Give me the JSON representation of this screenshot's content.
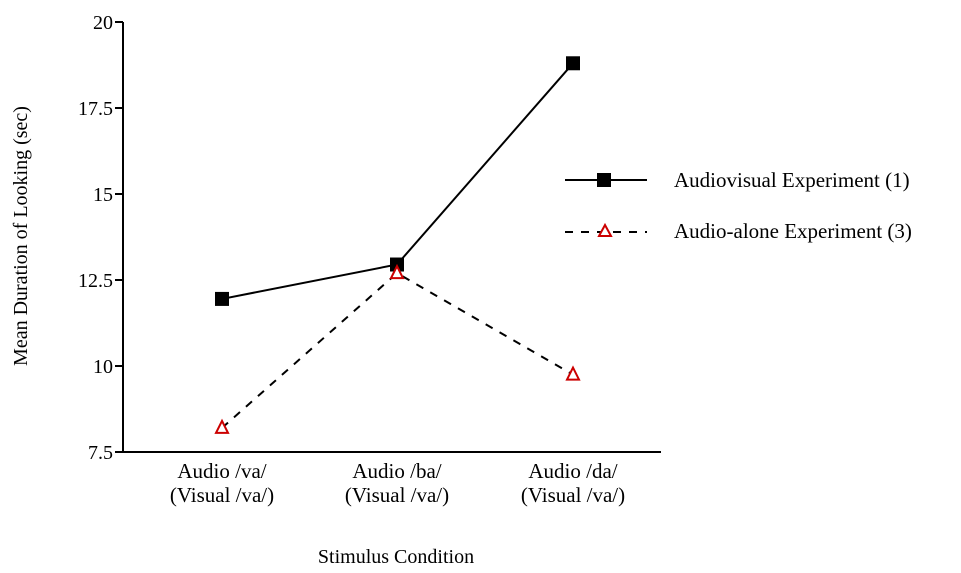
{
  "chart_data": {
    "type": "line",
    "title": "",
    "xlabel": "Stimulus Condition",
    "ylabel": "Mean Duration of Looking (sec)",
    "ylim": [
      7.5,
      20
    ],
    "yticks": [
      "20",
      "17.5",
      "15",
      "12.5",
      "10",
      "7.5"
    ],
    "ytick_values": [
      20,
      17.5,
      15,
      12.5,
      10,
      7.5
    ],
    "categories": [
      [
        "Audio /va/",
        "(Visual /va/)"
      ],
      [
        "Audio /ba/",
        "(Visual /va/)"
      ],
      [
        "Audio /da/",
        "(Visual /va/)"
      ]
    ],
    "legend_position": "right",
    "grid": false,
    "series": [
      {
        "name": "Audiovisual Experiment (1)",
        "values": [
          11.95,
          12.95,
          18.8
        ],
        "color": "#000000",
        "line_style": "solid",
        "marker": "filled-square"
      },
      {
        "name": "Audio-alone Experiment (3)",
        "values": [
          8.2,
          12.7,
          9.75
        ],
        "color": "#cc0000",
        "line_color": "#000000",
        "line_style": "dashed",
        "marker": "open-triangle"
      }
    ]
  }
}
